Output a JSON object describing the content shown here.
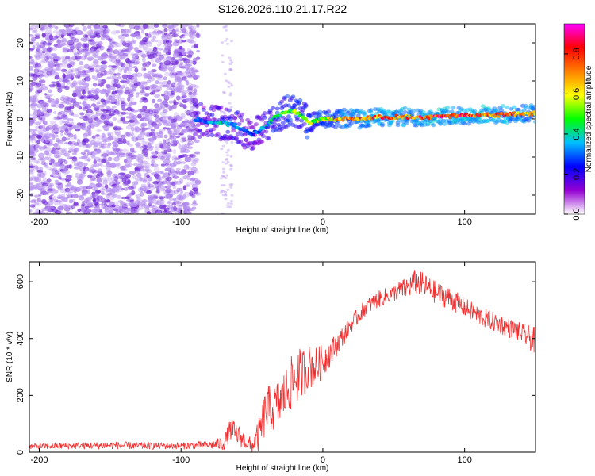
{
  "title": "S126.2026.110.21.17.R22",
  "colors": {
    "snr_line": "#f03030",
    "spectrogram_low": "#b58ff0",
    "spectrogram_mid": "#6a1fd6",
    "axis": "#000000"
  },
  "chart_data": [
    {
      "type": "heatmap",
      "name": "spectrogram",
      "xlabel": "Height of straight line (km)",
      "ylabel": "Frequency (Hz)",
      "xlim": [
        -207,
        150
      ],
      "ylim": [
        -25,
        25
      ],
      "xticks": [
        -200,
        -100,
        0,
        100
      ],
      "yticks": [
        -20,
        -10,
        0,
        10,
        20
      ],
      "colorbar": {
        "label": "Normalized spectral amplitude",
        "range": [
          0,
          0.95
        ],
        "ticks": [
          0.0,
          0.2,
          0.4,
          0.6,
          0.8
        ],
        "colormap": [
          "#ffffff",
          "#9400d3",
          "#0000ff",
          "#00bfff",
          "#00ff00",
          "#ffff00",
          "#ff8000",
          "#ff0000",
          "#ff00ff"
        ]
      },
      "ridge": {
        "x": [
          -90,
          -80,
          -70,
          -60,
          -50,
          -45,
          -40,
          -35,
          -30,
          -25,
          -20,
          -15,
          -10,
          0,
          20,
          40,
          60,
          80,
          100,
          120,
          150
        ],
        "freq": [
          0,
          -1,
          -1,
          -2,
          -4,
          -3,
          -2,
          0,
          1,
          2,
          2,
          1,
          -1,
          0,
          0,
          0.5,
          0.5,
          0.5,
          1,
          1,
          1.5
        ],
        "amplitude": [
          0.3,
          0.35,
          0.4,
          0.35,
          0.3,
          0.3,
          0.4,
          0.45,
          0.5,
          0.55,
          0.55,
          0.5,
          0.55,
          0.6,
          0.75,
          0.8,
          0.8,
          0.85,
          0.85,
          0.8,
          0.75
        ]
      },
      "noise_region": {
        "x_from": -207,
        "x_to": -88,
        "freq_from": -25,
        "freq_to": 25,
        "amplitude": [
          0.05,
          0.2
        ]
      }
    },
    {
      "type": "line",
      "name": "snr",
      "xlabel": "Height of straight line (km)",
      "ylabel": "SNR (10 * v/v)",
      "xlim": [
        -207,
        150
      ],
      "ylim": [
        0,
        670
      ],
      "xticks": [
        -200,
        -100,
        0,
        100
      ],
      "yticks": [
        0,
        200,
        400,
        600
      ],
      "series": [
        {
          "name": "SNR",
          "x": [
            -207,
            -180,
            -150,
            -120,
            -100,
            -80,
            -70,
            -65,
            -60,
            -55,
            -50,
            -45,
            -40,
            -35,
            -30,
            -25,
            -20,
            -15,
            -10,
            -5,
            0,
            10,
            20,
            30,
            40,
            50,
            60,
            65,
            70,
            80,
            90,
            100,
            110,
            120,
            130,
            140,
            150
          ],
          "y": [
            20,
            22,
            24,
            22,
            22,
            25,
            30,
            80,
            60,
            40,
            20,
            60,
            150,
            150,
            180,
            220,
            260,
            280,
            300,
            300,
            320,
            380,
            450,
            510,
            540,
            560,
            580,
            600,
            590,
            560,
            540,
            510,
            480,
            460,
            440,
            420,
            390
          ],
          "noise_amplitude": [
            10,
            12,
            14,
            12,
            12,
            15,
            25,
            40,
            40,
            30,
            30,
            60,
            90,
            80,
            90,
            90,
            100,
            90,
            80,
            70,
            60,
            40,
            30,
            30,
            30,
            30,
            40,
            45,
            45,
            40,
            40,
            35,
            35,
            35,
            35,
            35,
            50
          ]
        }
      ]
    }
  ]
}
